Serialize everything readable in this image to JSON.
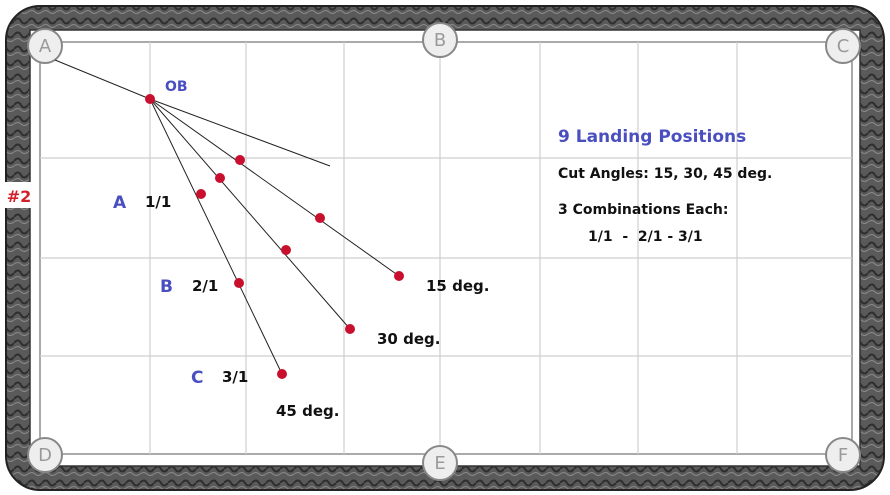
{
  "pockets": [
    "A",
    "B",
    "C",
    "D",
    "E",
    "F"
  ],
  "object_ball": "OB",
  "shot_number": "#2",
  "rows": [
    {
      "label": "A",
      "ratio": "1/1"
    },
    {
      "label": "B",
      "ratio": "2/1"
    },
    {
      "label": "C",
      "ratio": "3/1"
    }
  ],
  "angles": [
    "15 deg.",
    "30 deg.",
    "45 deg."
  ],
  "info": {
    "title": "9 Landing Positions",
    "cut_angles": "Cut Angles: 15, 30, 45 deg.",
    "combinations_heading": "3 Combinations Each:",
    "combinations": "1/1  -  2/1 - 3/1"
  }
}
